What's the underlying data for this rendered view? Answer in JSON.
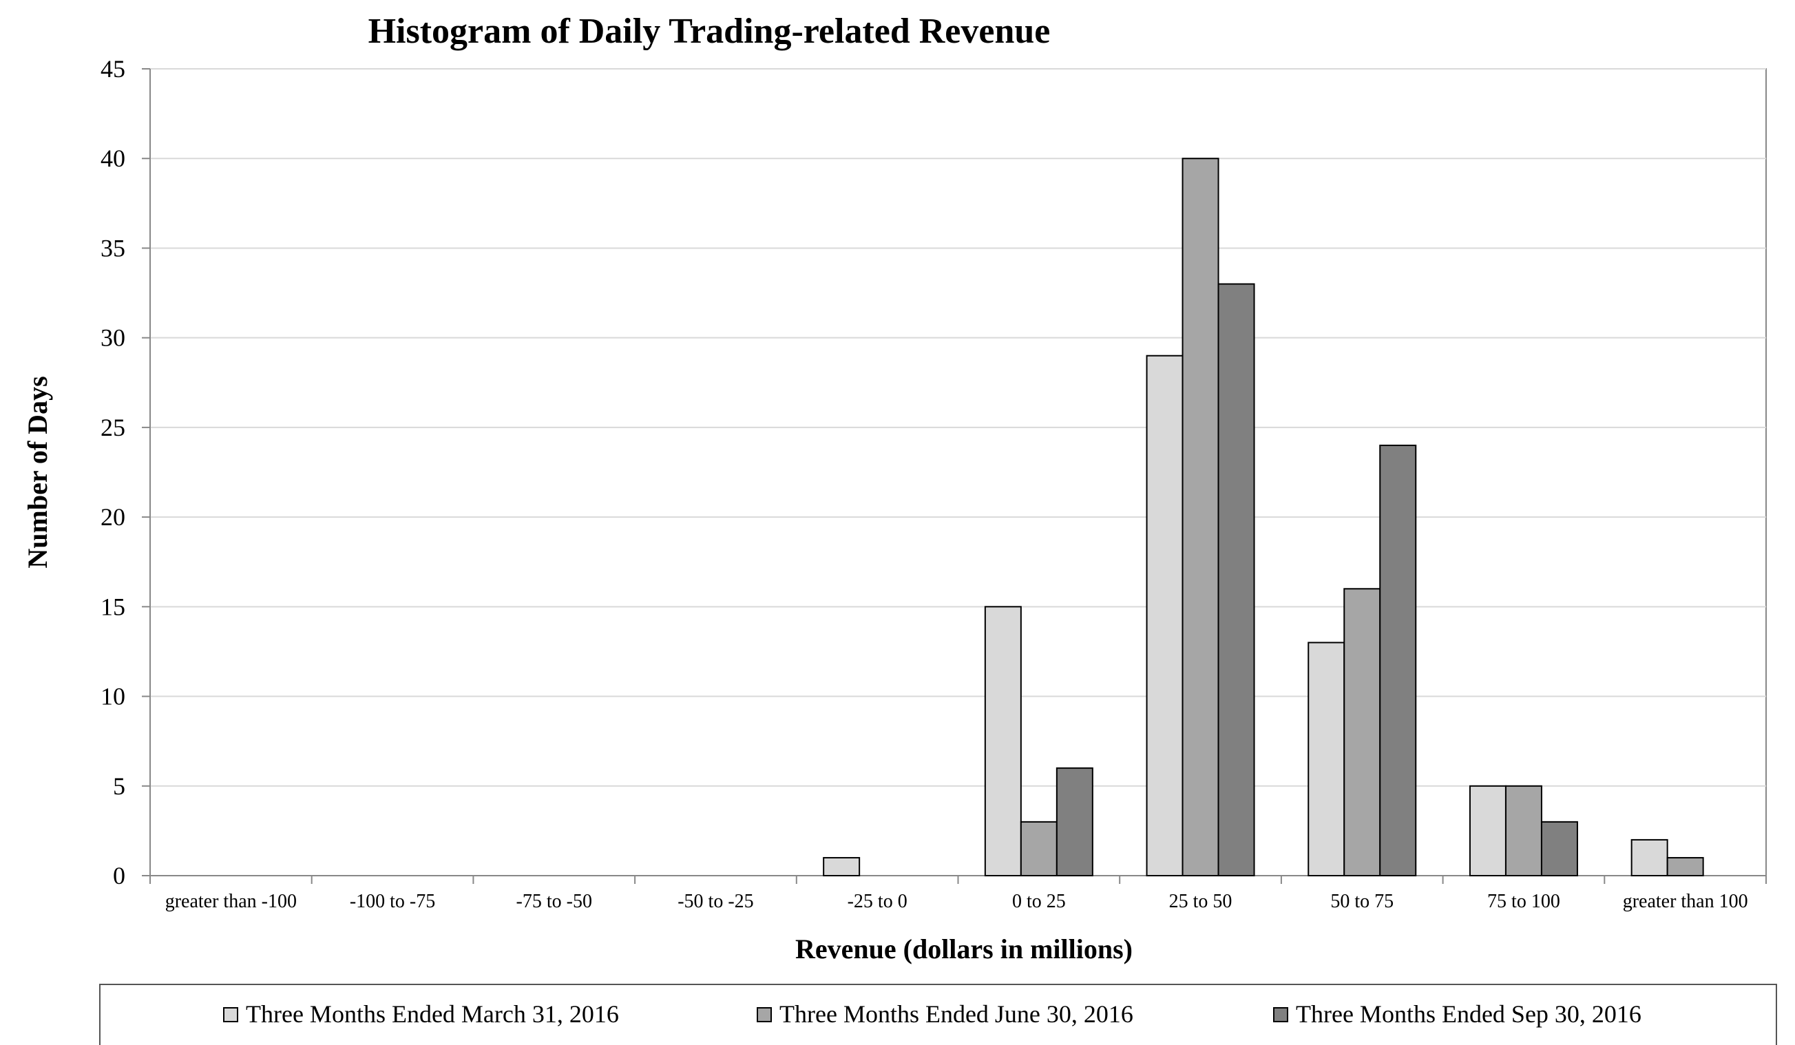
{
  "chart_data": {
    "type": "bar",
    "title": "Histogram of Daily Trading-related Revenue",
    "xlabel": "Revenue (dollars in millions)",
    "ylabel": "Number of Days",
    "ylim": [
      0,
      45
    ],
    "yticks": [
      0,
      5,
      10,
      15,
      20,
      25,
      30,
      35,
      40,
      45
    ],
    "grid": true,
    "legend_position": "bottom",
    "categories": [
      "greater than -100",
      "-100 to -75",
      "-75 to -50",
      "-50 to -25",
      "-25 to 0",
      "0 to 25",
      "25 to 50",
      "50 to 75",
      "75 to 100",
      "greater than 100"
    ],
    "series": [
      {
        "name": "Three Months Ended March 31, 2016",
        "color": "#d9d9d9",
        "values": [
          0,
          0,
          0,
          0,
          1,
          15,
          29,
          13,
          5,
          2
        ]
      },
      {
        "name": "Three Months Ended June 30, 2016",
        "color": "#a6a6a6",
        "values": [
          0,
          0,
          0,
          0,
          0,
          3,
          40,
          16,
          5,
          1
        ]
      },
      {
        "name": "Three Months Ended Sep 30, 2016",
        "color": "#808080",
        "values": [
          0,
          0,
          0,
          0,
          0,
          6,
          33,
          24,
          3,
          0
        ]
      }
    ],
    "colors": {
      "axis": "#888888",
      "grid": "#d9d9d9",
      "bar_outline": "#000000"
    }
  }
}
